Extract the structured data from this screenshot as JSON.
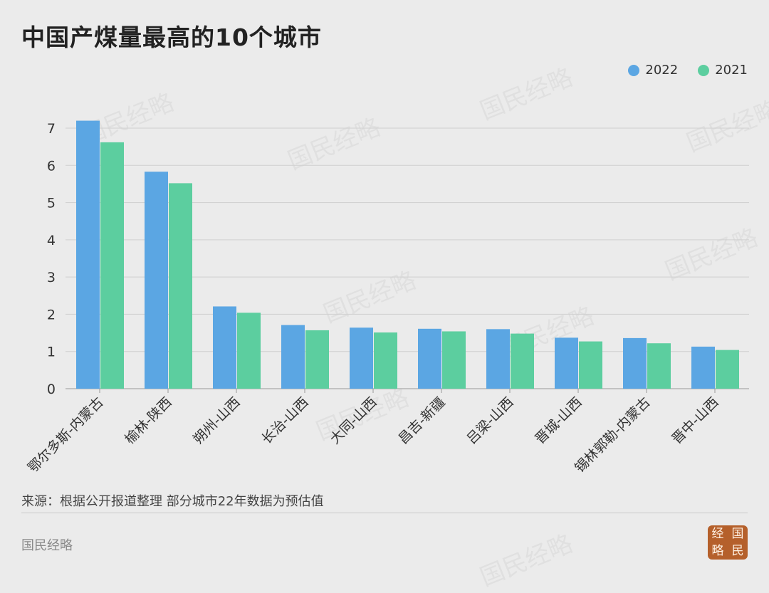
{
  "title": "中国产煤量最高的10个城市",
  "legend": [
    {
      "label": "2022",
      "color": "#5ba6e3"
    },
    {
      "label": "2021",
      "color": "#5cce9f"
    }
  ],
  "footer": {
    "source": "来源：根据公开报道整理 部分城市22年数据为预估值",
    "brand": "国民经略",
    "seal_chars": [
      "经",
      "国",
      "略",
      "民"
    ]
  },
  "watermark_text": "国民经略",
  "chart_data": {
    "type": "bar",
    "categories": [
      "鄂尔多斯-内蒙古",
      "榆林-陕西",
      "朔州-山西",
      "长治-山西",
      "大同-山西",
      "昌吉-新疆",
      "吕梁-山西",
      "晋城-山西",
      "锡林郭勒-内蒙古",
      "晋中-山西"
    ],
    "series": [
      {
        "name": "2022",
        "color": "#5ba6e3",
        "values": [
          7.2,
          5.83,
          2.21,
          1.71,
          1.64,
          1.61,
          1.6,
          1.37,
          1.36,
          1.13
        ]
      },
      {
        "name": "2021",
        "color": "#5cce9f",
        "values": [
          6.62,
          5.52,
          2.04,
          1.57,
          1.51,
          1.54,
          1.48,
          1.27,
          1.22,
          1.04
        ]
      }
    ],
    "ylim": [
      0,
      7
    ],
    "yticks": [
      0,
      1,
      2,
      3,
      4,
      5,
      6,
      7
    ],
    "grid": true,
    "legend_position": "top-right"
  }
}
